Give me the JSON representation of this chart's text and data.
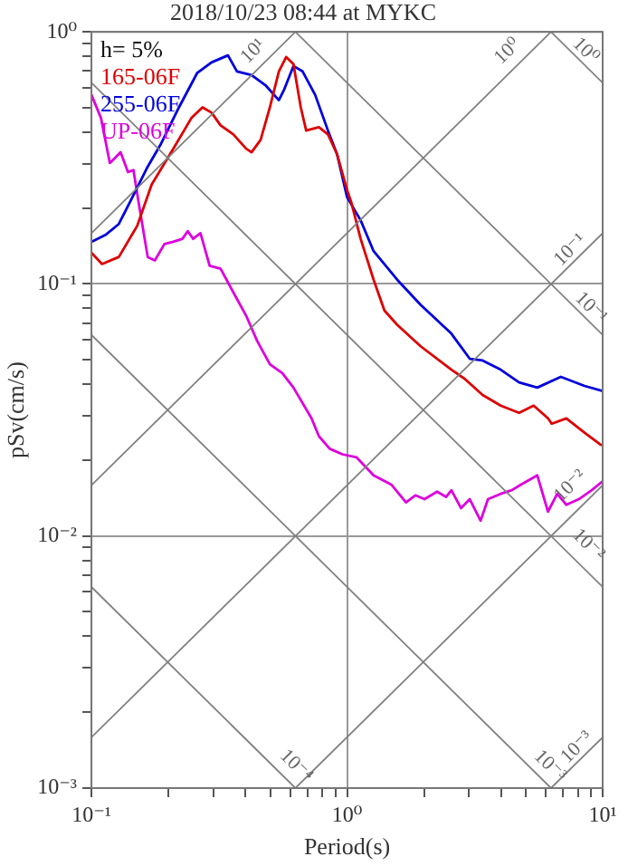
{
  "chart_data": {
    "type": "line",
    "title": "2018/10/23 08:44 at MYKC",
    "xlabel": "Period(s)",
    "ylabel": "pSv(cm/s)",
    "log": "xy",
    "xlim": [
      0.1,
      10
    ],
    "ylim": [
      0.001,
      1
    ],
    "xticks": [
      {
        "value": 0.1,
        "label": "10⁻¹"
      },
      {
        "value": 0.2,
        "label": null
      },
      {
        "value": 0.3,
        "label": null
      },
      {
        "value": 0.4,
        "label": null
      },
      {
        "value": 0.5,
        "label": null
      },
      {
        "value": 0.6,
        "label": null
      },
      {
        "value": 0.7,
        "label": null
      },
      {
        "value": 0.8,
        "label": null
      },
      {
        "value": 0.9,
        "label": null
      },
      {
        "value": 1,
        "label": "10⁰"
      },
      {
        "value": 2,
        "label": null
      },
      {
        "value": 3,
        "label": null
      },
      {
        "value": 4,
        "label": null
      },
      {
        "value": 5,
        "label": null
      },
      {
        "value": 6,
        "label": null
      },
      {
        "value": 7,
        "label": null
      },
      {
        "value": 8,
        "label": null
      },
      {
        "value": 9,
        "label": null
      },
      {
        "value": 10,
        "label": "10¹"
      }
    ],
    "yticks": [
      {
        "value": 0.001,
        "label": "10⁻³"
      },
      {
        "value": 0.002,
        "label": null
      },
      {
        "value": 0.003,
        "label": null
      },
      {
        "value": 0.004,
        "label": null
      },
      {
        "value": 0.005,
        "label": null
      },
      {
        "value": 0.006,
        "label": null
      },
      {
        "value": 0.007,
        "label": null
      },
      {
        "value": 0.008,
        "label": null
      },
      {
        "value": 0.009,
        "label": null
      },
      {
        "value": 0.01,
        "label": "10⁻²"
      },
      {
        "value": 0.02,
        "label": null
      },
      {
        "value": 0.03,
        "label": null
      },
      {
        "value": 0.04,
        "label": null
      },
      {
        "value": 0.05,
        "label": null
      },
      {
        "value": 0.06,
        "label": null
      },
      {
        "value": 0.07,
        "label": null
      },
      {
        "value": 0.08,
        "label": null
      },
      {
        "value": 0.09,
        "label": null
      },
      {
        "value": 0.1,
        "label": "10⁻¹"
      },
      {
        "value": 0.2,
        "label": null
      },
      {
        "value": 0.3,
        "label": null
      },
      {
        "value": 0.4,
        "label": null
      },
      {
        "value": 0.5,
        "label": null
      },
      {
        "value": 0.6,
        "label": null
      },
      {
        "value": 0.7,
        "label": null
      },
      {
        "value": 0.8,
        "label": null
      },
      {
        "value": 0.9,
        "label": null
      },
      {
        "value": 1,
        "label": "10⁰"
      }
    ],
    "grid": true,
    "legend": "top left",
    "marker": "none",
    "line_style": "solid",
    "annotations": [
      "h= 5%",
      {
        "text": "10¹",
        "x": 0.46,
        "y": 0.78
      },
      {
        "text": "10⁰",
        "x": 4.55,
        "y": 0.78
      },
      {
        "text": "10⁰",
        "x": 8.0,
        "y": 0.785
      },
      {
        "text": "10⁻¹",
        "x": 8.0,
        "y": 0.127
      },
      {
        "text": "10⁻¹",
        "x": 8.4,
        "y": 0.0748
      },
      {
        "text": "10⁻²",
        "x": 8.0,
        "y": 0.0147
      },
      {
        "text": "10⁻²",
        "x": 8.2,
        "y": 0.0086
      },
      {
        "text": "10⁻³",
        "x": 8.5,
        "y": 0.00135
      },
      {
        "text": "10⁻³",
        "x": 5.8,
        "y": 0.00114
      },
      {
        "text": "10⁻⁴",
        "x": 0.59,
        "y": 0.00114
      }
    ],
    "series": [
      {
        "color": "#808080",
        "x": [
          0.1,
          0.628
        ],
        "values": [
          0.159,
          1
        ]
      },
      {
        "color": "#808080",
        "x": [
          0.1,
          6.28
        ],
        "values": [
          0.0159,
          1
        ]
      },
      {
        "color": "#808080",
        "x": [
          0.1,
          10
        ],
        "values": [
          0.00159,
          0.159
        ]
      },
      {
        "color": "#808080",
        "x": [
          0.628,
          10
        ],
        "values": [
          0.001,
          0.0159
        ]
      },
      {
        "color": "#808080",
        "x": [
          6.28,
          10
        ],
        "values": [
          0.001,
          0.00159
        ]
      },
      {
        "color": "#808080",
        "x": [
          6.28,
          10
        ],
        "values": [
          1,
          0.628
        ]
      },
      {
        "color": "#808080",
        "x": [
          0.628,
          10
        ],
        "values": [
          1,
          0.0628
        ]
      },
      {
        "color": "#808080",
        "x": [
          0.1,
          10
        ],
        "values": [
          0.628,
          0.00628
        ]
      },
      {
        "color": "#808080",
        "x": [
          0.1,
          6.28
        ],
        "values": [
          0.0628,
          0.001
        ]
      },
      {
        "color": "#808080",
        "x": [
          0.1,
          0.628
        ],
        "values": [
          0.00628,
          0.001
        ]
      },
      {
        "name": "165-06F",
        "color": "#dd0000",
        "x": [
          0.1,
          0.11,
          0.128,
          0.151,
          0.172,
          0.209,
          0.246,
          0.272,
          0.295,
          0.32,
          0.359,
          0.403,
          0.423,
          0.459,
          0.499,
          0.541,
          0.578,
          0.617,
          0.659,
          0.692,
          0.776,
          0.842,
          0.914,
          1.0,
          1.04,
          1.13,
          1.27,
          1.4,
          1.57,
          1.94,
          2.56,
          2.88,
          3.39,
          3.99,
          4.71,
          5.37,
          6.11,
          6.32,
          7.21,
          8.49,
          9.84
        ],
        "values": [
          0.133,
          0.12,
          0.128,
          0.17,
          0.248,
          0.344,
          0.455,
          0.502,
          0.478,
          0.426,
          0.392,
          0.344,
          0.333,
          0.373,
          0.502,
          0.697,
          0.795,
          0.745,
          0.502,
          0.406,
          0.419,
          0.392,
          0.327,
          0.236,
          0.21,
          0.151,
          0.104,
          0.0785,
          0.0689,
          0.0566,
          0.0457,
          0.0421,
          0.0363,
          0.0329,
          0.0308,
          0.0329,
          0.0293,
          0.0279,
          0.0293,
          0.0257,
          0.023
        ]
      },
      {
        "name": "255-06F",
        "color": "#0000dd",
        "x": [
          0.1,
          0.114,
          0.128,
          0.141,
          0.166,
          0.186,
          0.22,
          0.259,
          0.295,
          0.342,
          0.371,
          0.423,
          0.482,
          0.541,
          0.568,
          0.617,
          0.67,
          0.75,
          0.842,
          0.914,
          1.0,
          1.13,
          1.27,
          1.57,
          1.94,
          2.56,
          3.02,
          3.39,
          3.99,
          4.71,
          5.55,
          6.86,
          8.49,
          10
        ],
        "values": [
          0.147,
          0.157,
          0.173,
          0.21,
          0.292,
          0.356,
          0.502,
          0.686,
          0.757,
          0.807,
          0.697,
          0.674,
          0.611,
          0.536,
          0.592,
          0.732,
          0.697,
          0.563,
          0.406,
          0.327,
          0.221,
          0.179,
          0.135,
          0.104,
          0.0826,
          0.0635,
          0.0505,
          0.0497,
          0.0457,
          0.0407,
          0.0388,
          0.0428,
          0.0394,
          0.0376
        ]
      },
      {
        "name": "UP-06F",
        "color": "#dd00dd",
        "x": [
          0.1,
          0.109,
          0.118,
          0.124,
          0.13,
          0.139,
          0.146,
          0.153,
          0.166,
          0.177,
          0.193,
          0.209,
          0.227,
          0.238,
          0.25,
          0.267,
          0.29,
          0.32,
          0.359,
          0.403,
          0.445,
          0.499,
          0.558,
          0.617,
          0.726,
          0.776,
          0.855,
          0.959,
          1.09,
          1.27,
          1.49,
          1.7,
          1.85,
          2.01,
          2.25,
          2.44,
          2.56,
          2.79,
          3.02,
          3.33,
          3.56,
          3.99,
          4.41,
          4.79,
          5.55,
          6.11,
          6.64,
          7.21,
          8.07,
          9.06,
          10
        ],
        "values": [
          0.563,
          0.455,
          0.302,
          0.317,
          0.333,
          0.278,
          0.283,
          0.21,
          0.128,
          0.124,
          0.144,
          0.147,
          0.151,
          0.162,
          0.151,
          0.159,
          0.118,
          0.115,
          0.0926,
          0.0748,
          0.0594,
          0.048,
          0.0443,
          0.0388,
          0.0293,
          0.0249,
          0.0222,
          0.0211,
          0.0205,
          0.0174,
          0.016,
          0.0136,
          0.0145,
          0.014,
          0.015,
          0.0143,
          0.0152,
          0.0129,
          0.014,
          0.0115,
          0.014,
          0.0147,
          0.0152,
          0.016,
          0.0174,
          0.0125,
          0.0147,
          0.0133,
          0.014,
          0.0152,
          0.0165
        ]
      }
    ]
  }
}
